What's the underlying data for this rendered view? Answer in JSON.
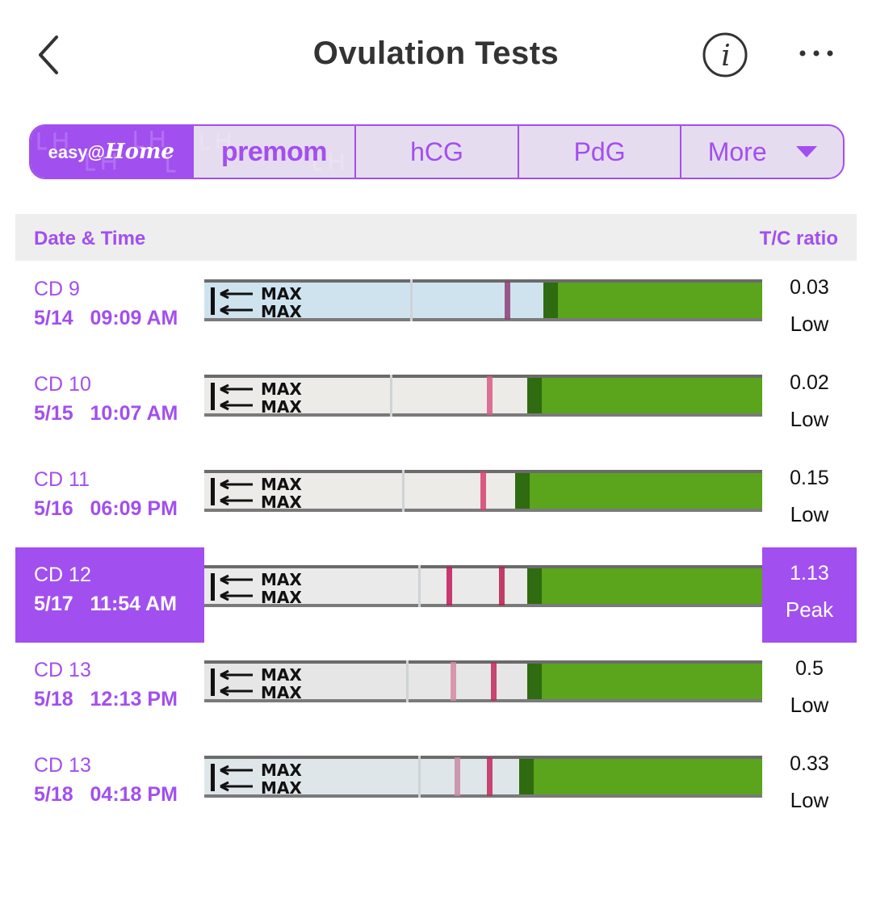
{
  "header": {
    "title": "Ovulation Tests"
  },
  "tabs": [
    {
      "brand": "easy@",
      "brand_home": "Home",
      "active": true
    },
    {
      "brand": "premom",
      "active": false
    },
    {
      "label": "hCG",
      "active": false
    },
    {
      "label": "PdG",
      "active": false
    },
    {
      "label": "More",
      "active": false
    }
  ],
  "table": {
    "col_date": "Date & Time",
    "col_ratio": "T/C ratio"
  },
  "strip_marking": "MAX",
  "tests": [
    {
      "cd": "CD 9",
      "date": "5/14",
      "time": "09:09 AM",
      "ratio": "0.03",
      "level": "Low",
      "selected": false
    },
    {
      "cd": "CD 10",
      "date": "5/15",
      "time": "10:07 AM",
      "ratio": "0.02",
      "level": "Low",
      "selected": false
    },
    {
      "cd": "CD 11",
      "date": "5/16",
      "time": "06:09 PM",
      "ratio": "0.15",
      "level": "Low",
      "selected": false
    },
    {
      "cd": "CD 12",
      "date": "5/17",
      "time": "11:54 AM",
      "ratio": "1.13",
      "level": "Peak",
      "selected": true
    },
    {
      "cd": "CD 13",
      "date": "5/18",
      "time": "12:13 PM",
      "ratio": "0.5",
      "level": "Low",
      "selected": false
    },
    {
      "cd": "CD 13",
      "date": "5/18",
      "time": "04:18 PM",
      "ratio": "0.33",
      "level": "Low",
      "selected": false
    }
  ],
  "colors": {
    "accent": "#a24fef",
    "tab_bg": "#e6dcef",
    "strip_green": "#5aa51b",
    "line_red": "#c2185b",
    "header_bg": "#eeeeee"
  }
}
